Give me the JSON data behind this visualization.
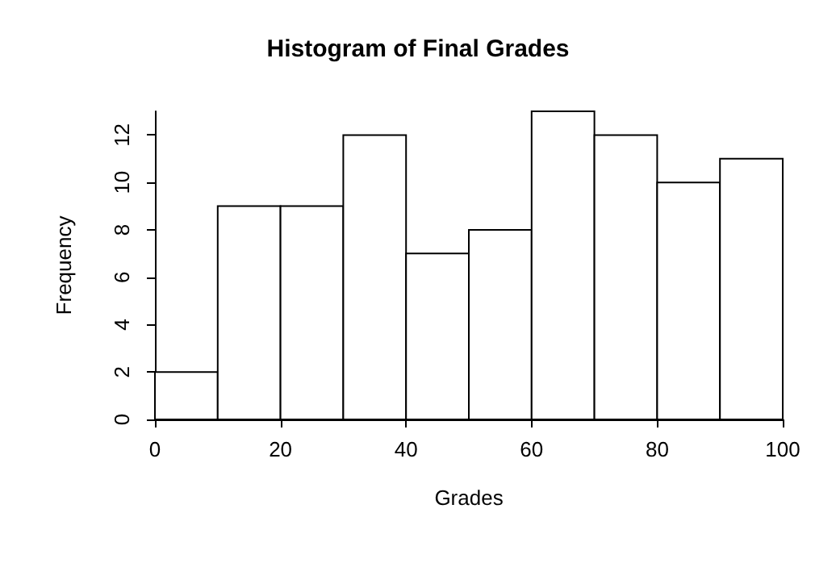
{
  "chart_data": {
    "type": "histogram",
    "title": "Histogram of Final Grades",
    "xlabel": "Grades",
    "ylabel": "Frequency",
    "bins": [
      0,
      10,
      20,
      30,
      40,
      50,
      60,
      70,
      80,
      90,
      100
    ],
    "values": [
      2,
      9,
      9,
      12,
      7,
      8,
      13,
      12,
      10,
      11
    ],
    "color": "#ffffff",
    "xlim": [
      0,
      100
    ],
    "xticks": [
      0,
      20,
      40,
      60,
      80,
      100
    ],
    "ylim": [
      0,
      13
    ],
    "yticks": [
      0,
      2,
      4,
      6,
      8,
      10,
      12
    ],
    "grid": false
  }
}
